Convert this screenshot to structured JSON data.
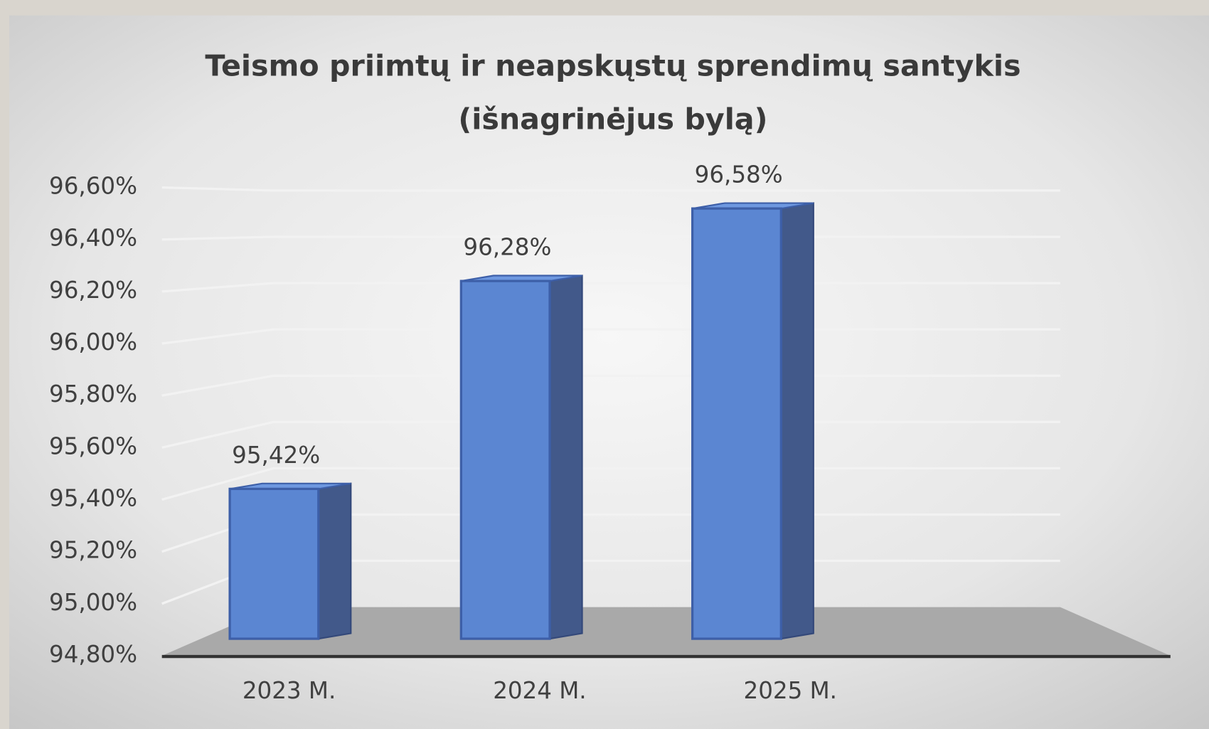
{
  "chart_data": {
    "type": "bar3d",
    "title": [
      "Teismo priimtų ir neapskųstų sprendimų santykis",
      "(išnagrinėjus bylą)"
    ],
    "categories": [
      "2023 M.",
      "2024 M.",
      "2025 M."
    ],
    "values": [
      95.42,
      96.28,
      96.58
    ],
    "value_labels": [
      "95,42%",
      "96,28%",
      "96,58%"
    ],
    "color": "#5b86d2",
    "ylim": [
      94.8,
      96.6
    ],
    "yticks": [
      {
        "value": 94.8,
        "label": "94,80%"
      },
      {
        "value": 95.0,
        "label": "95,00%"
      },
      {
        "value": 95.2,
        "label": "95,20%"
      },
      {
        "value": 95.4,
        "label": "95,40%"
      },
      {
        "value": 95.6,
        "label": "95,60%"
      },
      {
        "value": 95.8,
        "label": "95,80%"
      },
      {
        "value": 96.0,
        "label": "96,00%"
      },
      {
        "value": 96.2,
        "label": "96,20%"
      },
      {
        "value": 96.4,
        "label": "96,40%"
      },
      {
        "value": 96.6,
        "label": "96,60%"
      }
    ],
    "grid": true
  }
}
